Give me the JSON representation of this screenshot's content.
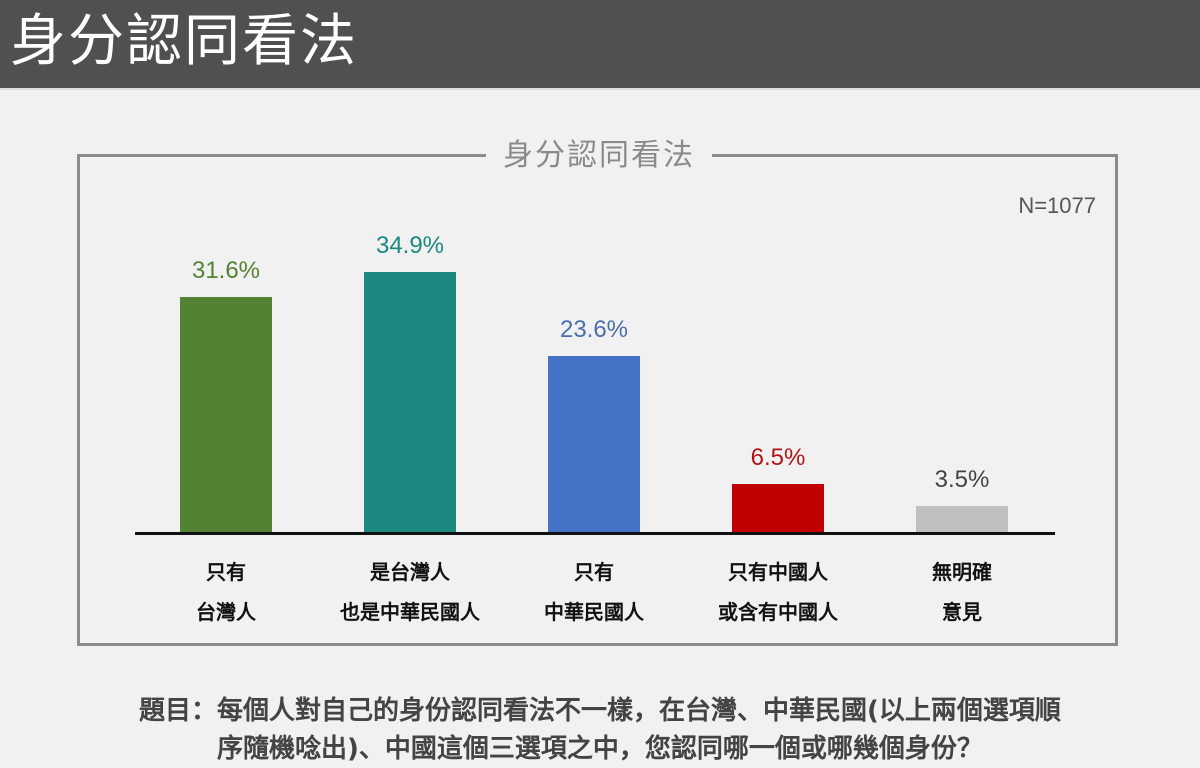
{
  "header": {
    "title": "身分認同看法"
  },
  "chart_data": {
    "type": "bar",
    "title": "身分認同看法",
    "annotation": "N=1077",
    "categories": [
      "只有台灣人",
      "是台灣人也是中華民國人",
      "只有中華民國人",
      "只有中國人或含有中國人",
      "無明確意見"
    ],
    "category_lines": [
      [
        "只有",
        "台灣人"
      ],
      [
        "是台灣人",
        "也是中華民國人"
      ],
      [
        "只有",
        "中華民國人"
      ],
      [
        "只有中國人",
        "或含有中國人"
      ],
      [
        "無明確",
        "意見"
      ]
    ],
    "values": [
      31.6,
      34.9,
      23.6,
      6.5,
      3.5
    ],
    "value_labels": [
      "31.6%",
      "34.9%",
      "23.6%",
      "6.5%",
      "3.5%"
    ],
    "colors": [
      "#548235",
      "#1c8981",
      "#4472c4",
      "#c00000",
      "#bfbfbf"
    ],
    "label_colors": [
      "#548235",
      "#1c8981",
      "#4a6fae",
      "#b01515",
      "#444444"
    ],
    "xlabel": "",
    "ylabel": "",
    "ylim": [
      0,
      40
    ],
    "grid": false,
    "legend": "none"
  },
  "question": {
    "line1": "題目：每個人對自己的身份認同看法不一樣，在台灣、中華民國(以上兩個選項順",
    "line2": "序隨機唸出)、中國這個三選項之中，您認同哪一個或哪幾個身份？"
  }
}
